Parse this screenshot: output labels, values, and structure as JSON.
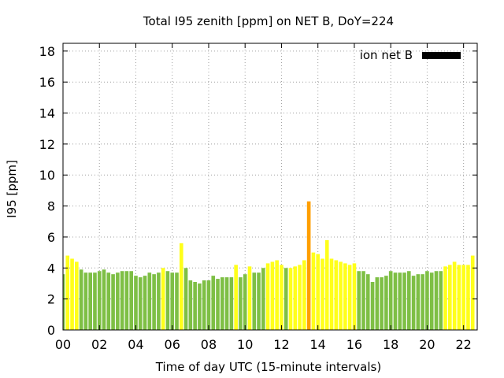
{
  "chart_data": {
    "type": "bar",
    "title": "Total I95 zenith [ppm] on NET B, DoY=224",
    "xlabel": "Time of day UTC (15-minute intervals)",
    "ylabel": "I95 [ppm]",
    "x_tick_labels": [
      "00",
      "02",
      "04",
      "06",
      "08",
      "10",
      "12",
      "14",
      "16",
      "18",
      "20",
      "22"
    ],
    "x_tick_hours": [
      0,
      2,
      4,
      6,
      8,
      10,
      12,
      14,
      16,
      18,
      20,
      22
    ],
    "xlim_hours": [
      0,
      22.75
    ],
    "bar_interval_hours": 0.25,
    "ylim": [
      0,
      18.5
    ],
    "y_ticks": [
      0,
      2,
      4,
      6,
      8,
      10,
      12,
      14,
      16,
      18
    ],
    "grid": true,
    "legend": {
      "position": "top-right",
      "label": "ion net B",
      "swatch_color": "#000000"
    },
    "colors": {
      "green": "#7ebf45",
      "yellow": "#ffff1a",
      "orange": "#ff9f00"
    },
    "series": [
      {
        "values": [
          3.6,
          4.8,
          4.6,
          4.4,
          3.9,
          3.7,
          3.7,
          3.7,
          3.8,
          3.9,
          3.7,
          3.6,
          3.7,
          3.8,
          3.8,
          3.8,
          3.5,
          3.4,
          3.5,
          3.7,
          3.6,
          3.7,
          4.0,
          3.8,
          3.7,
          3.7,
          5.6,
          4.0,
          3.2,
          3.1,
          3.0,
          3.2,
          3.2,
          3.5,
          3.3,
          3.4,
          3.4,
          3.4,
          4.2,
          3.4,
          3.6,
          4.1,
          3.7,
          3.7,
          4.0,
          4.3,
          4.4,
          4.5,
          4.2,
          4.0,
          4.0,
          4.1,
          4.2,
          4.5,
          8.3,
          5.0,
          4.9,
          4.6,
          5.8,
          4.6,
          4.5,
          4.4,
          4.3,
          4.2,
          4.3,
          3.8,
          3.8,
          3.6,
          3.1,
          3.4,
          3.4,
          3.5,
          3.8,
          3.7,
          3.7,
          3.7,
          3.8,
          3.5,
          3.6,
          3.6,
          3.8,
          3.7,
          3.8,
          3.8,
          4.1,
          4.2,
          4.4,
          4.2,
          4.2,
          4.2,
          4.8
        ],
        "colors": [
          "g",
          "y",
          "y",
          "y",
          "g",
          "g",
          "g",
          "g",
          "g",
          "g",
          "g",
          "g",
          "g",
          "g",
          "g",
          "g",
          "g",
          "g",
          "g",
          "g",
          "g",
          "g",
          "y",
          "g",
          "g",
          "g",
          "y",
          "g",
          "g",
          "g",
          "g",
          "g",
          "g",
          "g",
          "g",
          "g",
          "g",
          "g",
          "y",
          "g",
          "g",
          "y",
          "g",
          "g",
          "g",
          "y",
          "y",
          "y",
          "y",
          "g",
          "y",
          "y",
          "y",
          "y",
          "o",
          "y",
          "y",
          "y",
          "y",
          "y",
          "y",
          "y",
          "y",
          "y",
          "y",
          "g",
          "g",
          "g",
          "g",
          "g",
          "g",
          "g",
          "g",
          "g",
          "g",
          "g",
          "g",
          "g",
          "g",
          "g",
          "g",
          "g",
          "g",
          "g",
          "y",
          "y",
          "y",
          "y",
          "y",
          "y",
          "y"
        ]
      }
    ]
  }
}
